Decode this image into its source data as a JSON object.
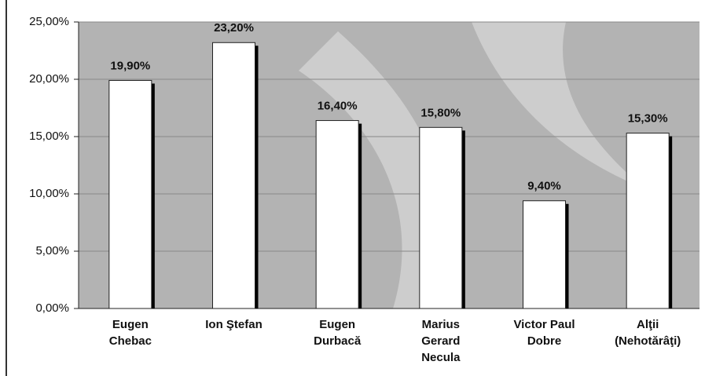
{
  "chart_data": {
    "type": "bar",
    "categories": [
      "Eugen\nChebac",
      "Ion Ştefan",
      "Eugen\nDurbacă",
      "Marius\nGerard\nNecula",
      "Victor Paul\nDobre",
      "Alţii\n(Nehotărâţi)"
    ],
    "values": [
      19.9,
      23.2,
      16.4,
      15.8,
      9.4,
      15.3
    ],
    "value_labels": [
      "19,90%",
      "23,20%",
      "16,40%",
      "15,80%",
      "9,40%",
      "15,30%"
    ],
    "color": "#ffffff",
    "ylim": [
      0,
      25
    ],
    "yticks": [
      {
        "value": 0,
        "label": "0,00%"
      },
      {
        "value": 5,
        "label": "5,00%"
      },
      {
        "value": 10,
        "label": "10,00%"
      },
      {
        "value": 15,
        "label": "15,00%"
      },
      {
        "value": 20,
        "label": "20,00%"
      },
      {
        "value": 25,
        "label": "25,00%"
      }
    ],
    "grid": true
  }
}
